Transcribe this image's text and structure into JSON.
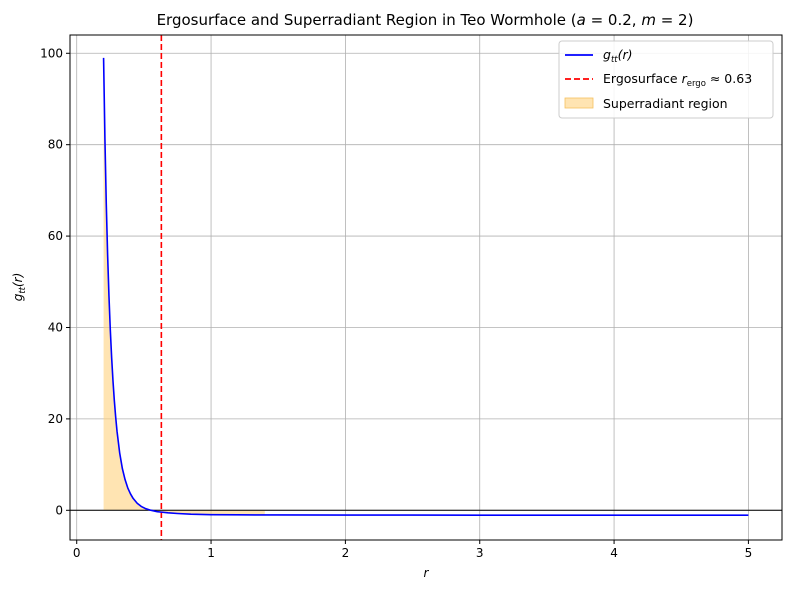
{
  "chart_data": {
    "type": "line",
    "title": {
      "prefix": "Ergosurface and Superradiant Region in Teo Wormhole (",
      "a_var": "a",
      "a_eq": " = 0.2, ",
      "m_var": "m",
      "m_eq": " = 2)"
    },
    "xlabel": "r",
    "ylabel": {
      "main": "g",
      "sub": "tt",
      "paren": "(r)"
    },
    "xlim": [
      -0.05,
      5.25
    ],
    "ylim": [
      -6.5,
      104
    ],
    "xticks": [
      0,
      1,
      2,
      3,
      4,
      5
    ],
    "yticks": [
      0,
      20,
      40,
      60,
      80,
      100
    ],
    "grid": true,
    "legend_position": "top-right",
    "series": [
      {
        "name": {
          "main": "g",
          "sub": "tt",
          "paren": "(r)"
        },
        "color": "#0000ff",
        "x": [
          0.2,
          0.21,
          0.22,
          0.23,
          0.24,
          0.25,
          0.26,
          0.27,
          0.28,
          0.29,
          0.3,
          0.32,
          0.34,
          0.36,
          0.38,
          0.4,
          0.42,
          0.45,
          0.48,
          0.51,
          0.55,
          0.6,
          0.63,
          0.68,
          0.75,
          0.85,
          1.0,
          1.2,
          1.5,
          2.0,
          2.5,
          3.0,
          3.5,
          4.0,
          4.5,
          5.0
        ],
        "y": [
          99.0,
          81.2,
          67.1,
          55.9,
          46.9,
          39.5,
          33.4,
          28.3,
          24.0,
          20.4,
          17.3,
          12.5,
          9.1,
          6.7,
          4.9,
          3.6,
          2.6,
          1.55,
          0.85,
          0.4,
          0.02,
          -0.3,
          -0.4,
          -0.55,
          -0.7,
          -0.85,
          -0.95,
          -1.0,
          -1.02,
          -1.04,
          -1.05,
          -1.06,
          -1.06,
          -1.07,
          -1.07,
          -1.07
        ]
      }
    ],
    "ergosurface": {
      "r": 0.63,
      "color": "#ff0000",
      "label": {
        "prefix": "Ergosurface ",
        "var": "r",
        "sub": "ergo",
        "suffix": " ≈ 0.63"
      }
    },
    "superradiant_region": {
      "label": "Superradiant region",
      "color": "#ffd27f",
      "lower_x": [
        0.63,
        0.8,
        1.0,
        1.2,
        1.4
      ],
      "lower_y": [
        -0.4,
        -0.8,
        -0.95,
        -1.0,
        -1.01
      ]
    },
    "zero_line": {
      "y": 0,
      "color": "#000000"
    }
  }
}
